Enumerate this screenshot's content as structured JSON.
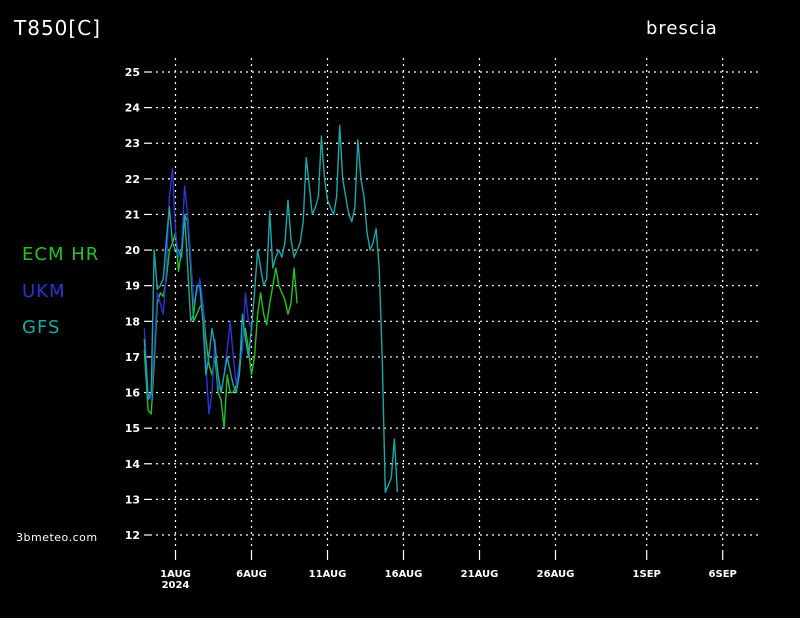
{
  "chart_data": {
    "type": "line",
    "title": "T850[C]",
    "location": "brescia",
    "source": "3bmeteo.com",
    "ylim": [
      12,
      25
    ],
    "yticks": [
      12,
      13,
      14,
      15,
      16,
      17,
      18,
      19,
      20,
      21,
      22,
      23,
      24,
      25
    ],
    "x_domain_days": [
      0,
      40
    ],
    "xticks": [
      {
        "day": 1,
        "label": "1AUG",
        "sublabel": "2024"
      },
      {
        "day": 6,
        "label": "6AUG"
      },
      {
        "day": 11,
        "label": "11AUG"
      },
      {
        "day": 16,
        "label": "16AUG"
      },
      {
        "day": 21,
        "label": "21AUG"
      },
      {
        "day": 26,
        "label": "26AUG"
      },
      {
        "day": 32,
        "label": "1SEP"
      },
      {
        "day": 37,
        "label": "6SEP"
      }
    ],
    "grid": true,
    "legend_position": "left",
    "series": [
      {
        "name": "ECM HR",
        "color": "#22c41e",
        "x": [
          -1.05,
          -0.8,
          -0.6,
          -0.4,
          -0.2,
          0.0,
          0.2,
          0.4,
          0.6,
          0.8,
          1.0,
          1.2,
          1.4,
          1.6,
          1.8,
          2.0,
          2.2,
          2.4,
          2.6,
          2.8,
          3.0,
          3.2,
          3.4,
          3.6,
          3.8,
          4.0,
          4.2,
          4.4,
          4.6,
          4.8,
          5.0,
          5.2,
          5.4,
          5.6,
          5.8,
          6.0,
          6.2,
          6.4,
          6.6,
          6.8,
          7.0,
          7.2,
          7.4,
          7.6,
          7.8,
          8.0,
          8.2,
          8.4,
          8.6,
          8.8,
          9.0
        ],
        "values": [
          17.2,
          15.5,
          15.4,
          16.8,
          18.5,
          18.8,
          18.7,
          19.2,
          20.0,
          20.2,
          20.5,
          19.4,
          20.0,
          21.0,
          20.8,
          19.5,
          18.0,
          18.2,
          18.4,
          18.5,
          17.5,
          16.8,
          16.5,
          17.0,
          16.0,
          15.8,
          15.0,
          16.5,
          16.0,
          16.0,
          16.2,
          16.5,
          17.5,
          17.8,
          17.2,
          16.5,
          17.0,
          18.2,
          18.8,
          18.2,
          17.9,
          18.5,
          19.0,
          19.5,
          19.0,
          18.8,
          18.6,
          18.2,
          18.5,
          19.5,
          18.5
        ]
      },
      {
        "name": "UKM",
        "color": "#2a35d8",
        "x": [
          -1.05,
          -0.8,
          -0.6,
          -0.4,
          -0.2,
          0.0,
          0.2,
          0.4,
          0.6,
          0.8,
          1.0,
          1.2,
          1.4,
          1.6,
          1.8,
          2.0,
          2.2,
          2.4,
          2.6,
          2.8,
          3.0,
          3.2,
          3.4,
          3.6,
          3.8,
          4.0,
          4.2,
          4.4,
          4.6,
          4.8,
          5.0,
          5.2,
          5.4,
          5.6,
          5.8,
          6.0
        ],
        "values": [
          17.8,
          16.0,
          15.8,
          17.2,
          18.8,
          18.5,
          18.2,
          19.5,
          21.5,
          22.3,
          20.5,
          19.8,
          20.0,
          21.8,
          21.0,
          19.8,
          18.5,
          18.8,
          19.2,
          18.5,
          16.8,
          15.4,
          16.0,
          17.5,
          16.2,
          16.0,
          16.5,
          17.2,
          18.0,
          17.0,
          16.2,
          16.8,
          17.2,
          18.8,
          18.0,
          17.8
        ]
      },
      {
        "name": "GFS",
        "color": "#1aa7a7",
        "x": [
          -1.05,
          -0.8,
          -0.6,
          -0.4,
          -0.2,
          0.0,
          0.2,
          0.4,
          0.6,
          0.8,
          1.0,
          1.2,
          1.4,
          1.6,
          1.8,
          2.0,
          2.2,
          2.4,
          2.6,
          2.8,
          3.0,
          3.2,
          3.4,
          3.6,
          3.8,
          4.0,
          4.2,
          4.4,
          4.6,
          4.8,
          5.0,
          5.2,
          5.4,
          5.6,
          5.8,
          6.0,
          6.2,
          6.4,
          6.6,
          6.8,
          7.0,
          7.2,
          7.4,
          7.6,
          7.8,
          8.0,
          8.2,
          8.4,
          8.6,
          8.8,
          9.0,
          9.2,
          9.4,
          9.6,
          9.8,
          10.0,
          10.2,
          10.4,
          10.6,
          10.8,
          11.0,
          11.2,
          11.4,
          11.6,
          11.8,
          12.0,
          12.2,
          12.4,
          12.6,
          12.8,
          13.0,
          13.2,
          13.4,
          13.6,
          13.8,
          14.0,
          14.2,
          14.4,
          14.6,
          14.8,
          15.0,
          15.2,
          15.4,
          15.6
        ],
        "values": [
          17.5,
          15.8,
          16.0,
          20.0,
          18.9,
          19.0,
          19.2,
          20.3,
          21.2,
          20.2,
          20.0,
          20.0,
          19.8,
          21.0,
          19.5,
          18.0,
          18.2,
          19.0,
          19.0,
          18.0,
          16.5,
          17.0,
          17.8,
          17.3,
          16.5,
          16.0,
          16.5,
          17.0,
          16.6,
          16.2,
          16.0,
          16.5,
          18.2,
          17.5,
          17.0,
          17.8,
          18.8,
          20.0,
          19.5,
          19.0,
          19.2,
          21.1,
          19.5,
          19.8,
          20.0,
          19.8,
          20.2,
          21.4,
          20.3,
          19.8,
          20.0,
          20.2,
          20.8,
          22.6,
          21.8,
          21.0,
          21.2,
          21.5,
          23.2,
          22.0,
          21.4,
          21.2,
          21.0,
          21.5,
          23.5,
          22.0,
          21.5,
          21.0,
          20.8,
          21.2,
          23.1,
          22.0,
          21.5,
          20.5,
          20.0,
          20.2,
          20.6,
          19.5,
          17.0,
          13.2,
          13.4,
          13.6,
          14.7,
          13.2
        ]
      }
    ]
  }
}
